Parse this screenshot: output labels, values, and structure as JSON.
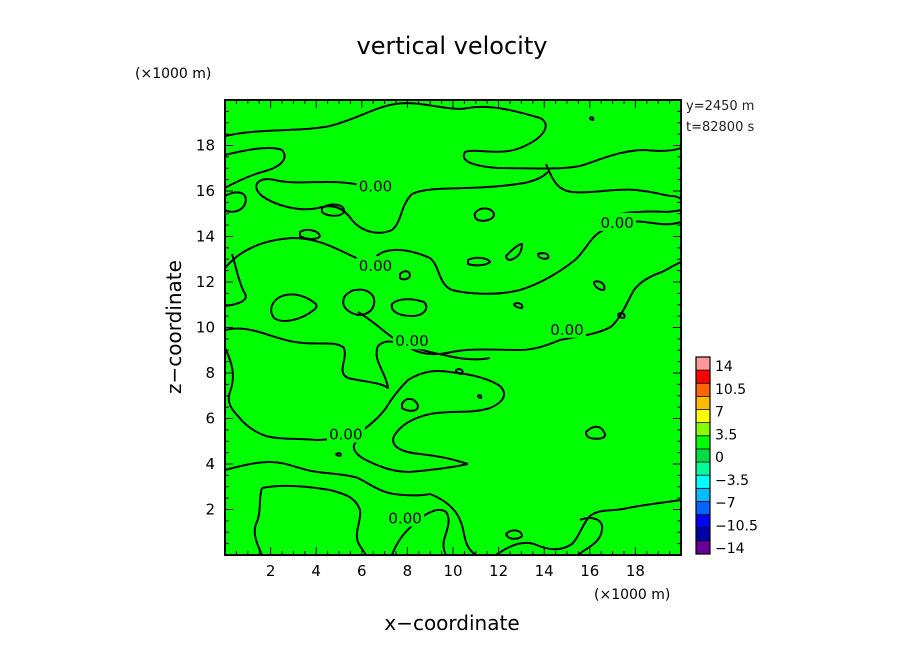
{
  "chart_data": {
    "type": "contour",
    "title": "vertical velocity",
    "xlabel": "x−coordinate",
    "ylabel": "z−coordinate",
    "x_unit": "(×1000 m)",
    "y_unit": "(×1000 m)",
    "xlim": [
      0,
      20
    ],
    "ylim": [
      0,
      20
    ],
    "x_ticks": [
      "2",
      "4",
      "6",
      "8",
      "10",
      "12",
      "14",
      "16",
      "18"
    ],
    "y_ticks": [
      "2",
      "4",
      "6",
      "8",
      "10",
      "12",
      "14",
      "16",
      "18"
    ],
    "info_lines": [
      "y=2450 m",
      "t=82800 s"
    ],
    "contour_labels": [
      {
        "text": "0.00",
        "x": 6.6,
        "y": 16.2
      },
      {
        "text": "0.00",
        "x": 6.6,
        "y": 12.7
      },
      {
        "text": "0.00",
        "x": 17.2,
        "y": 14.6
      },
      {
        "text": "0.00",
        "x": 8.2,
        "y": 9.4
      },
      {
        "text": "0.00",
        "x": 15.0,
        "y": 9.9
      },
      {
        "text": "0.00",
        "x": 5.3,
        "y": 5.3
      },
      {
        "text": "0.00",
        "x": 7.9,
        "y": 1.6
      }
    ],
    "contour_level": 0.0,
    "field_fill_color": "#00ff00",
    "colorbar": {
      "levels": [
        "14",
        "10.5",
        "7",
        "3.5",
        "0",
        "−3.5",
        "−7",
        "−10.5",
        "−14"
      ],
      "colors": [
        "#ff9999",
        "#ff0000",
        "#ff6600",
        "#ffbb00",
        "#ffff00",
        "#88ff00",
        "#00ff00",
        "#00dd44",
        "#00ff99",
        "#00ffff",
        "#00bbff",
        "#0066ff",
        "#0000ff",
        "#0000aa",
        "#660099"
      ]
    }
  }
}
